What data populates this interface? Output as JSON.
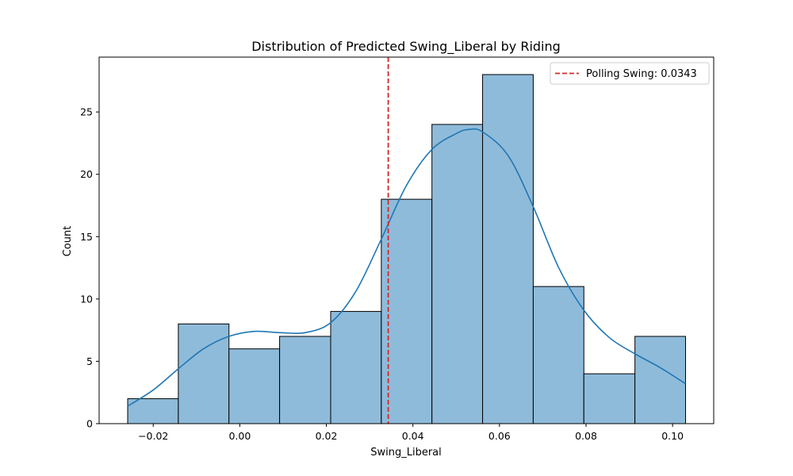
{
  "chart_data": {
    "type": "bar",
    "title": "Distribution of Predicted Swing_Liberal by Riding",
    "xlabel": "Swing_Liberal",
    "ylabel": "Count",
    "xlim": [
      -0.0325,
      0.1095
    ],
    "ylim": [
      0,
      29.4
    ],
    "xticks": [
      -0.02,
      0.0,
      0.02,
      0.04,
      0.06,
      0.08,
      0.1
    ],
    "xtick_labels": [
      "−0.02",
      "0.00",
      "0.02",
      "0.04",
      "0.06",
      "0.08",
      "0.10"
    ],
    "yticks": [
      0,
      5,
      10,
      15,
      20,
      25
    ],
    "ytick_labels": [
      "0",
      "5",
      "10",
      "15",
      "20",
      "25"
    ],
    "bin_edges": [
      -0.0259,
      -0.0142,
      -0.0025,
      0.0092,
      0.021,
      0.0327,
      0.0444,
      0.0561,
      0.0678,
      0.0795,
      0.0913,
      0.103
    ],
    "counts": [
      2,
      8,
      6,
      7,
      9,
      18,
      24,
      28,
      11,
      4,
      7
    ],
    "kde": {
      "x": [
        -0.0259,
        -0.02,
        -0.0142,
        -0.0084,
        -0.0025,
        0.0034,
        0.0092,
        0.0151,
        0.021,
        0.0268,
        0.0327,
        0.0385,
        0.0444,
        0.0502,
        0.053,
        0.0561,
        0.062,
        0.0678,
        0.0737,
        0.0795,
        0.0854,
        0.0913,
        0.0971,
        0.103
      ],
      "y": [
        1.4,
        2.7,
        4.4,
        6.0,
        7.0,
        7.4,
        7.3,
        7.3,
        8.1,
        10.6,
        14.8,
        19.1,
        22.0,
        23.3,
        23.6,
        23.4,
        21.5,
        17.4,
        12.5,
        9.1,
        6.9,
        5.6,
        4.5,
        3.2
      ]
    },
    "vline": {
      "x": 0.0343,
      "label": "Polling Swing: 0.0343",
      "color": "#d62728"
    },
    "bar_color": "#8fbbda",
    "kde_color": "#1f77b4",
    "grid": false,
    "legend_position": "top-right"
  }
}
